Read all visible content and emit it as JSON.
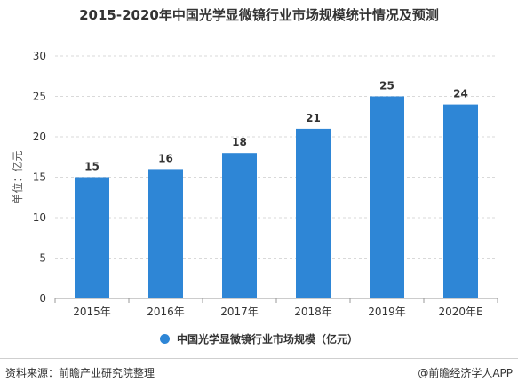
{
  "colors": {
    "bar": "#2e86d6",
    "grid": "#d9d9d9",
    "axis": "#999999"
  },
  "source": "资料来源：前瞻产业研究院整理",
  "brand": "@前瞻经济学人APP",
  "chart_data": {
    "type": "bar",
    "title": "2015-2020年中国光学显微镜行业市场规模统计情况及预测",
    "categories": [
      "2015年",
      "2016年",
      "2017年",
      "2018年",
      "2019年",
      "2020年E"
    ],
    "series": [
      {
        "name": "中国光学显微镜行业市场规模（亿元）",
        "values": [
          15,
          16,
          18,
          21,
          25,
          24
        ]
      }
    ],
    "ylabel": "单位：亿元",
    "xlabel": "",
    "ylim": [
      0,
      30
    ],
    "yticks": [
      0,
      5,
      10,
      15,
      20,
      25,
      30
    ],
    "grid": true,
    "legend_position": "bottom",
    "data_labels": true
  }
}
